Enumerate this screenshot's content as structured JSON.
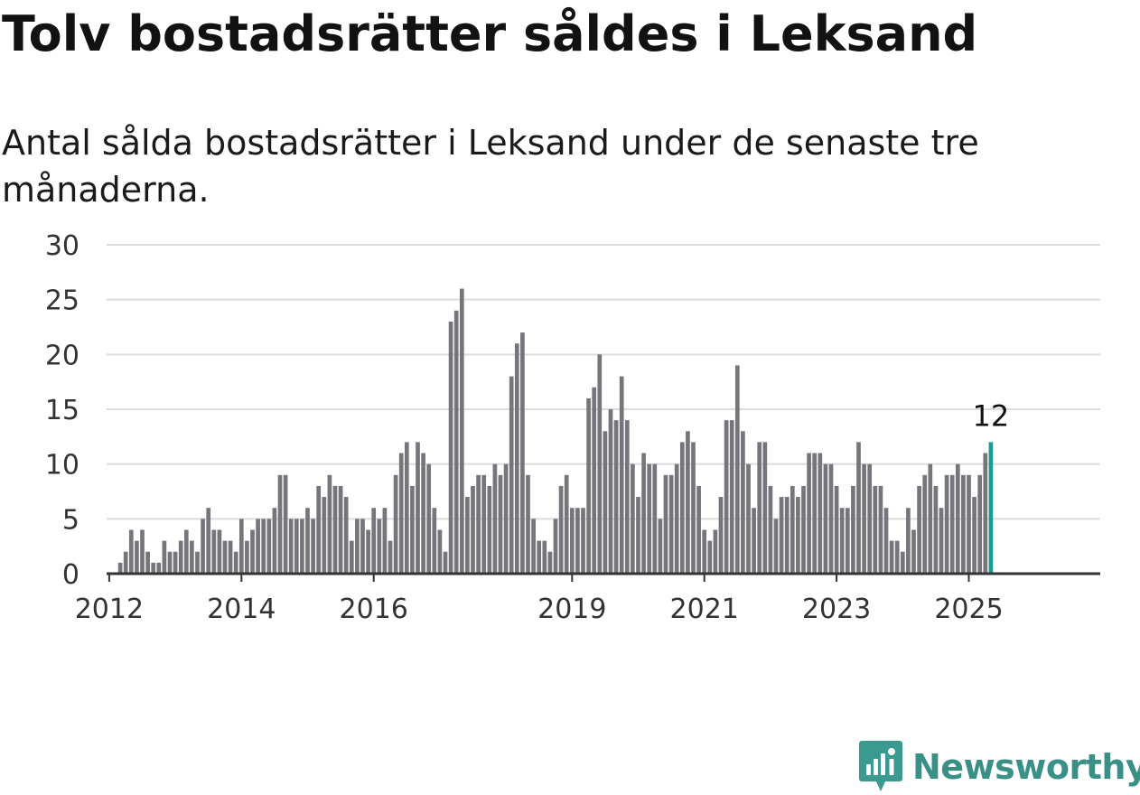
{
  "header": {
    "title": "Tolv bostadsrätter såldes i Leksand",
    "subtitle": "Antal sålda bostadsrätter i Leksand under de senaste tre månaderna."
  },
  "brand": {
    "name": "Newsworthy",
    "color": "#3a9a90"
  },
  "chart_data": {
    "type": "bar",
    "title": "Tolv bostadsrätter såldes i Leksand",
    "subtitle": "Antal sålda bostadsrätter i Leksand under de senaste tre månaderna.",
    "x_start": "2012-01",
    "x_tick_labels": [
      "2012",
      "2014",
      "2016",
      "2019",
      "2021",
      "2023",
      "2025"
    ],
    "ylim": [
      0,
      30
    ],
    "y_ticks": [
      0,
      5,
      10,
      15,
      20,
      25,
      30
    ],
    "grid": true,
    "colors": {
      "bar": "#76757b",
      "highlight": "#1e9a94"
    },
    "values": [
      0,
      0,
      1,
      2,
      4,
      3,
      4,
      2,
      1,
      1,
      3,
      2,
      2,
      3,
      4,
      3,
      2,
      5,
      6,
      4,
      4,
      3,
      3,
      2,
      5,
      3,
      4,
      5,
      5,
      5,
      6,
      9,
      9,
      5,
      5,
      5,
      6,
      5,
      8,
      7,
      9,
      8,
      8,
      7,
      3,
      5,
      5,
      4,
      6,
      5,
      6,
      3,
      9,
      11,
      12,
      8,
      12,
      11,
      10,
      6,
      4,
      2,
      23,
      24,
      26,
      7,
      8,
      9,
      9,
      8,
      10,
      9,
      10,
      18,
      21,
      22,
      9,
      5,
      3,
      3,
      2,
      5,
      8,
      9,
      6,
      6,
      6,
      16,
      17,
      20,
      13,
      15,
      14,
      18,
      14,
      10,
      7,
      11,
      10,
      10,
      5,
      9,
      9,
      10,
      12,
      13,
      12,
      8,
      4,
      3,
      4,
      7,
      14,
      14,
      19,
      13,
      10,
      6,
      12,
      12,
      8,
      5,
      7,
      7,
      8,
      7,
      8,
      11,
      11,
      11,
      10,
      10,
      8,
      6,
      6,
      8,
      12,
      10,
      10,
      8,
      8,
      6,
      3,
      3,
      2,
      6,
      4,
      8,
      9,
      10,
      8,
      6,
      9,
      9,
      10,
      9,
      9,
      7,
      9,
      11,
      12
    ],
    "highlight_label": "12"
  }
}
